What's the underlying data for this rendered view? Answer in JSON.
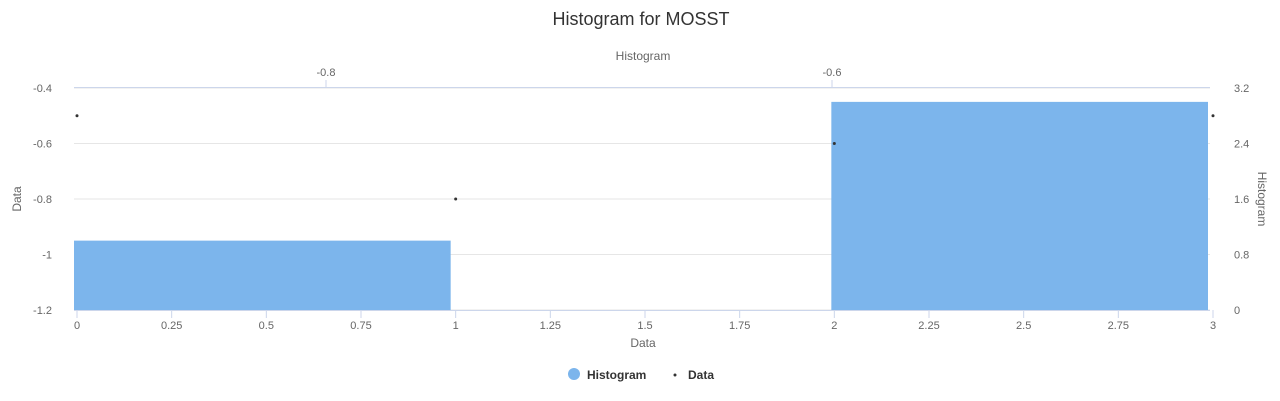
{
  "chart_data": {
    "type": "bar",
    "title": "Histogram for MOSST",
    "xlabel": "Data",
    "x_top_label": "Histogram",
    "ylabel_left": "Data",
    "ylabel_right": "Histogram",
    "x_range": [
      0,
      3
    ],
    "x_ticks": [
      "0",
      "0.25",
      "0.5",
      "0.75",
      "1",
      "1.25",
      "1.5",
      "1.75",
      "2",
      "2.25",
      "2.5",
      "2.75",
      "3"
    ],
    "x_top_ticks": [
      "-0.8",
      "-0.6"
    ],
    "y_left_range": [
      -1.2,
      -0.4
    ],
    "y_left_ticks": [
      "-1.2",
      "-1",
      "-0.8",
      "-0.6",
      "-0.4"
    ],
    "y_right_range": [
      0,
      3.2
    ],
    "y_right_ticks": [
      "0",
      "0.8",
      "1.6",
      "2.4",
      "3.2"
    ],
    "grid": true,
    "legend_position": "bottom-center",
    "series": [
      {
        "name": "Histogram",
        "kind": "bar",
        "axis": "right",
        "color": "#7cb5ec",
        "bins": [
          {
            "from": 0,
            "to": 1,
            "value": 1
          },
          {
            "from": 1,
            "to": 2,
            "value": 0
          },
          {
            "from": 2,
            "to": 3,
            "value": 3
          }
        ]
      },
      {
        "name": "Data",
        "kind": "scatter",
        "axis": "left",
        "color": "#333333",
        "points": [
          {
            "x": 0,
            "y": -0.5
          },
          {
            "x": 1,
            "y": -0.8
          },
          {
            "x": 2,
            "y": -0.6
          },
          {
            "x": 3,
            "y": -0.5
          }
        ]
      }
    ]
  }
}
